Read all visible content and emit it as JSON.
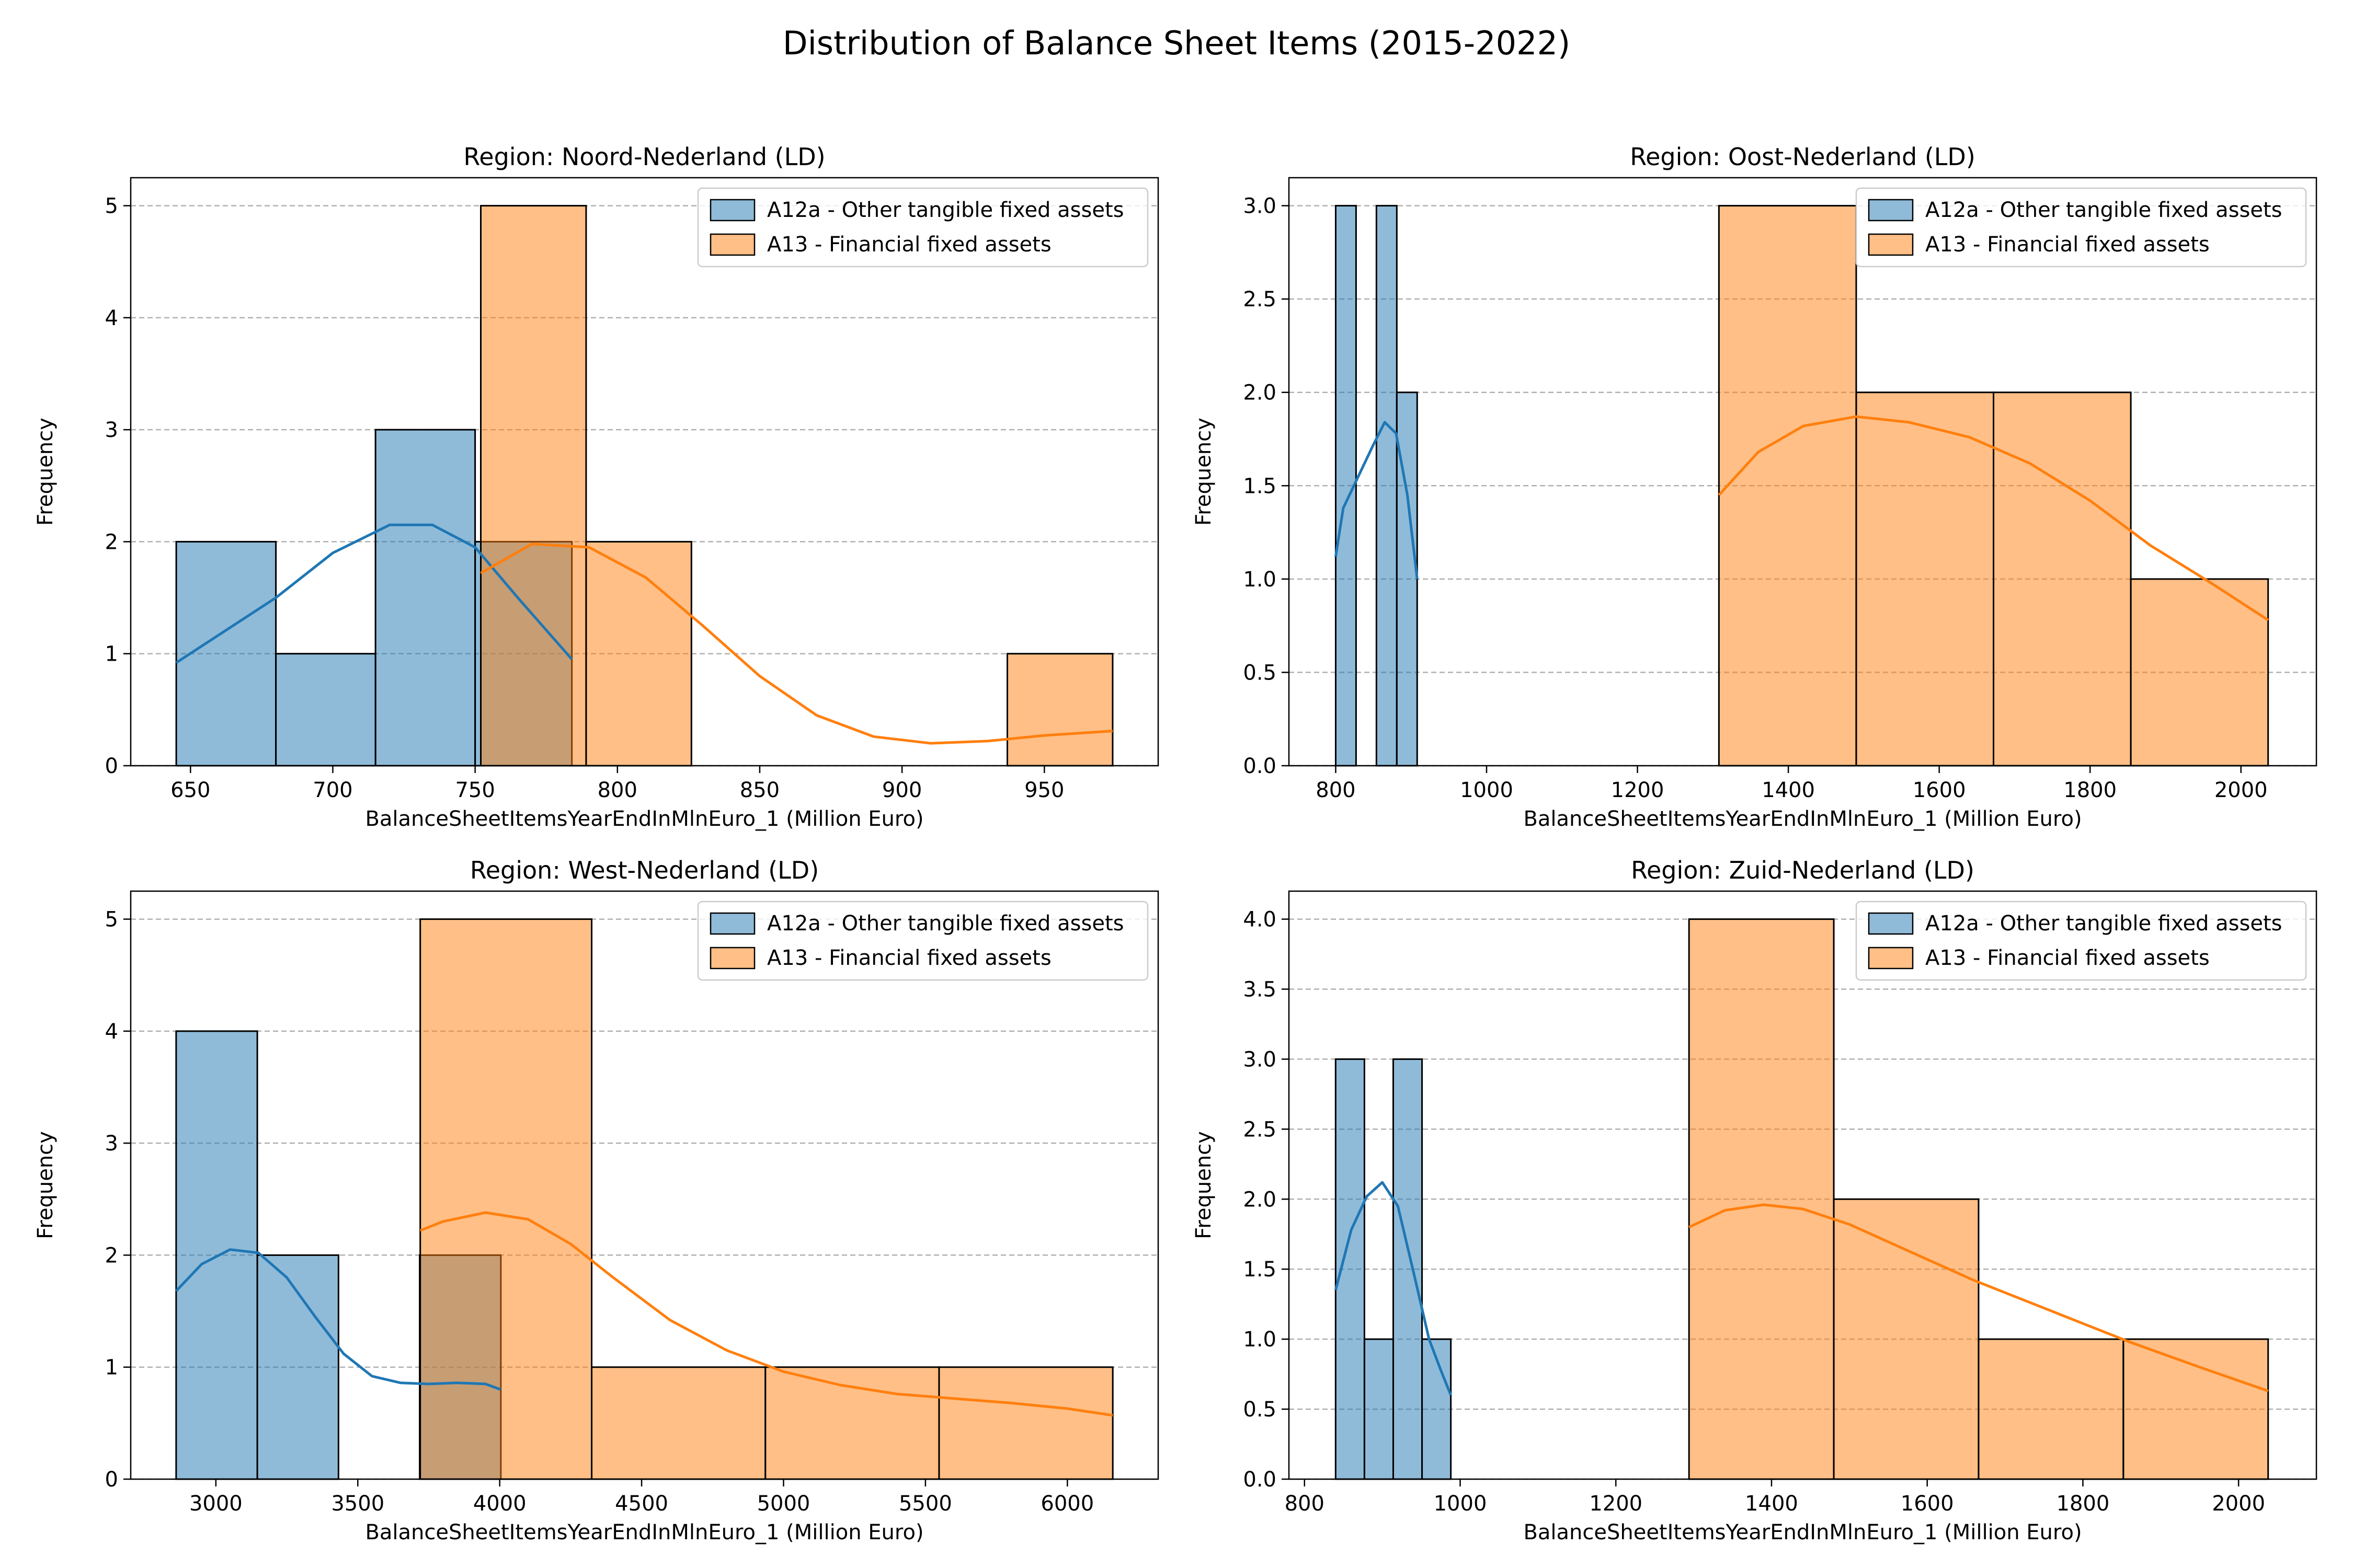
{
  "figure": {
    "title": "Distribution of Balance Sheet Items (2015-2022)"
  },
  "colors": {
    "series_a": "#1f77b4",
    "series_a_fill": "#8fbbd9",
    "series_b": "#ff7f0e",
    "series_b_fill": "#ffbf86",
    "grid": "#b0b0b0"
  },
  "chart_data": [
    {
      "type": "bar",
      "title": "Region: Noord-Nederland (LD)",
      "xlabel": "BalanceSheetItemsYearEndInMlnEuro_1 (Million Euro)",
      "ylabel": "Frequency",
      "xlim": [
        629,
        990
      ],
      "ylim": [
        0,
        5.25
      ],
      "xticks": [
        650,
        700,
        750,
        800,
        850,
        900,
        950
      ],
      "yticks": [
        0,
        1,
        2,
        3,
        4,
        5
      ],
      "grid": "y",
      "legend": "top-right",
      "series": [
        {
          "name": "A12a - Other tangible fixed assets",
          "bins": [
            [
              645,
              680,
              2
            ],
            [
              680,
              715,
              1
            ],
            [
              715,
              750,
              3
            ],
            [
              750,
              784,
              2
            ]
          ],
          "kde": [
            [
              645,
              0.92
            ],
            [
              680,
              1.5
            ],
            [
              700,
              1.9
            ],
            [
              720,
              2.15
            ],
            [
              735,
              2.15
            ],
            [
              750,
              1.95
            ],
            [
              765,
              1.5
            ],
            [
              784,
              0.95
            ]
          ]
        },
        {
          "name": "A13 - Financial fixed assets",
          "bins": [
            [
              752,
              789,
              5
            ],
            [
              789,
              826,
              2
            ],
            [
              826,
              863,
              0
            ],
            [
              863,
              900,
              0
            ],
            [
              900,
              937,
              0
            ],
            [
              937,
              974,
              1
            ]
          ],
          "kde": [
            [
              752,
              1.72
            ],
            [
              770,
              1.98
            ],
            [
              790,
              1.95
            ],
            [
              810,
              1.68
            ],
            [
              830,
              1.25
            ],
            [
              850,
              0.8
            ],
            [
              870,
              0.45
            ],
            [
              890,
              0.26
            ],
            [
              910,
              0.2
            ],
            [
              930,
              0.22
            ],
            [
              950,
              0.27
            ],
            [
              974,
              0.31
            ]
          ]
        }
      ]
    },
    {
      "type": "bar",
      "title": "Region: Oost-Nederland (LD)",
      "xlabel": "BalanceSheetItemsYearEndInMlnEuro_1 (Million Euro)",
      "ylabel": "Frequency",
      "xlim": [
        738,
        2100
      ],
      "ylim": [
        0,
        3.15
      ],
      "xticks": [
        800,
        1000,
        1200,
        1400,
        1600,
        1800,
        2000
      ],
      "yticks": [
        0,
        0.5,
        1.0,
        1.5,
        2.0,
        2.5,
        3.0
      ],
      "grid": "y",
      "legend": "top-right",
      "series": [
        {
          "name": "A12a - Other tangible fixed assets",
          "bins": [
            [
              800,
              827,
              3
            ],
            [
              827,
              854,
              0
            ],
            [
              854,
              881,
              3
            ],
            [
              881,
              908,
              2
            ]
          ],
          "kde": [
            [
              800,
              1.12
            ],
            [
              810,
              1.38
            ],
            [
              830,
              1.55
            ],
            [
              850,
              1.72
            ],
            [
              865,
              1.84
            ],
            [
              880,
              1.78
            ],
            [
              895,
              1.45
            ],
            [
              908,
              1.0
            ]
          ]
        },
        {
          "name": "A13 - Financial fixed assets",
          "bins": [
            [
              1308,
              1490,
              3
            ],
            [
              1490,
              1672,
              2
            ],
            [
              1672,
              1854,
              2
            ],
            [
              1854,
              2036,
              1
            ]
          ],
          "kde": [
            [
              1308,
              1.45
            ],
            [
              1360,
              1.68
            ],
            [
              1420,
              1.82
            ],
            [
              1490,
              1.87
            ],
            [
              1560,
              1.84
            ],
            [
              1640,
              1.76
            ],
            [
              1720,
              1.62
            ],
            [
              1800,
              1.42
            ],
            [
              1880,
              1.18
            ],
            [
              1960,
              0.98
            ],
            [
              2036,
              0.78
            ]
          ]
        }
      ]
    },
    {
      "type": "bar",
      "title": "Region: West-Nederland (LD)",
      "xlabel": "BalanceSheetItemsYearEndInMlnEuro_1 (Million Euro)",
      "ylabel": "Frequency",
      "xlim": [
        2700,
        6320
      ],
      "ylim": [
        0,
        5.25
      ],
      "xticks": [
        3000,
        3500,
        4000,
        4500,
        5000,
        5500,
        6000
      ],
      "yticks": [
        0,
        1,
        2,
        3,
        4,
        5
      ],
      "grid": "y",
      "legend": "top-right",
      "series": [
        {
          "name": "A12a - Other tangible fixed assets",
          "bins": [
            [
              2860,
              3146,
              4
            ],
            [
              3146,
              3432,
              2
            ],
            [
              3432,
              3718,
              0
            ],
            [
              3718,
              4004,
              2
            ]
          ],
          "kde": [
            [
              2860,
              1.68
            ],
            [
              2950,
              1.92
            ],
            [
              3050,
              2.05
            ],
            [
              3150,
              2.02
            ],
            [
              3250,
              1.8
            ],
            [
              3350,
              1.45
            ],
            [
              3450,
              1.12
            ],
            [
              3550,
              0.92
            ],
            [
              3650,
              0.86
            ],
            [
              3750,
              0.85
            ],
            [
              3850,
              0.86
            ],
            [
              3950,
              0.85
            ],
            [
              4004,
              0.8
            ]
          ]
        },
        {
          "name": "A13 - Financial fixed assets",
          "bins": [
            [
              3720,
              4324,
              5
            ],
            [
              4324,
              4936,
              1
            ],
            [
              4936,
              5548,
              1
            ],
            [
              5548,
              6160,
              1
            ]
          ],
          "kde": [
            [
              3720,
              2.22
            ],
            [
              3800,
              2.3
            ],
            [
              3950,
              2.38
            ],
            [
              4100,
              2.32
            ],
            [
              4250,
              2.1
            ],
            [
              4400,
              1.8
            ],
            [
              4600,
              1.42
            ],
            [
              4800,
              1.15
            ],
            [
              5000,
              0.96
            ],
            [
              5200,
              0.84
            ],
            [
              5400,
              0.76
            ],
            [
              5600,
              0.72
            ],
            [
              5800,
              0.68
            ],
            [
              6000,
              0.63
            ],
            [
              6160,
              0.57
            ]
          ]
        }
      ]
    },
    {
      "type": "bar",
      "title": "Region: Zuid-Nederland (LD)",
      "xlabel": "BalanceSheetItemsYearEndInMlnEuro_1 (Million Euro)",
      "ylabel": "Frequency",
      "xlim": [
        780,
        2100
      ],
      "ylim": [
        0,
        4.2
      ],
      "xticks": [
        800,
        1000,
        1200,
        1400,
        1600,
        1800,
        2000
      ],
      "yticks": [
        0,
        0.5,
        1.0,
        1.5,
        2.0,
        2.5,
        3.0,
        3.5,
        4.0
      ],
      "grid": "y",
      "legend": "top-right",
      "series": [
        {
          "name": "A12a - Other tangible fixed assets",
          "bins": [
            [
              840,
              877,
              3
            ],
            [
              877,
              914,
              1
            ],
            [
              914,
              951,
              3
            ],
            [
              951,
              988,
              1
            ]
          ],
          "kde": [
            [
              840,
              1.35
            ],
            [
              860,
              1.78
            ],
            [
              880,
              2.02
            ],
            [
              900,
              2.12
            ],
            [
              920,
              1.95
            ],
            [
              940,
              1.48
            ],
            [
              960,
              1.0
            ],
            [
              975,
              0.78
            ],
            [
              988,
              0.6
            ]
          ]
        },
        {
          "name": "A13 - Financial fixed assets",
          "bins": [
            [
              1294,
              1480,
              4
            ],
            [
              1480,
              1666,
              2
            ],
            [
              1666,
              1852,
              1
            ],
            [
              1852,
              2038,
              1
            ]
          ],
          "kde": [
            [
              1294,
              1.8
            ],
            [
              1340,
              1.92
            ],
            [
              1390,
              1.96
            ],
            [
              1440,
              1.93
            ],
            [
              1500,
              1.82
            ],
            [
              1580,
              1.62
            ],
            [
              1660,
              1.42
            ],
            [
              1760,
              1.2
            ],
            [
              1860,
              0.98
            ],
            [
              1950,
              0.8
            ],
            [
              2038,
              0.63
            ]
          ]
        }
      ]
    }
  ]
}
